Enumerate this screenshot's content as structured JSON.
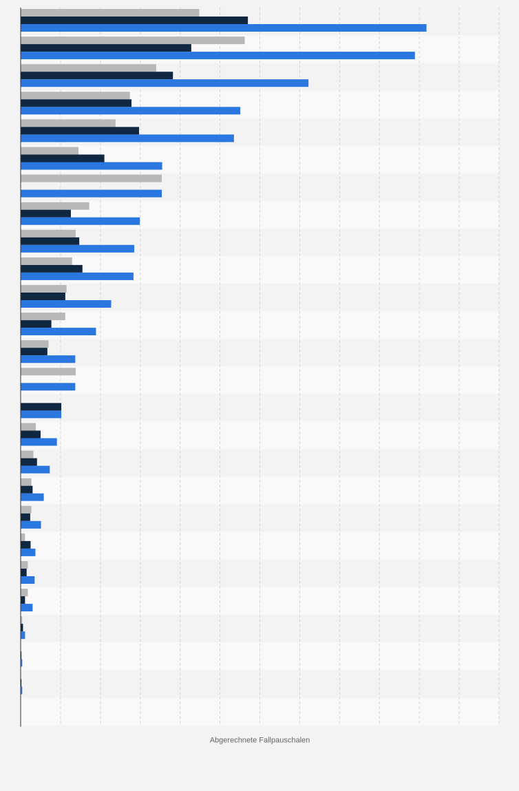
{
  "chart_data": {
    "type": "bar",
    "orientation": "horizontal",
    "title": "",
    "xlabel": "Abgerechnete Fallpauschalen",
    "ylabel": "",
    "grid": true,
    "legend": "none",
    "xlim": [
      0,
      12
    ],
    "categories": [
      "",
      "",
      "",
      "",
      "",
      "",
      "",
      "",
      "",
      "",
      "",
      "",
      "",
      "",
      "",
      "",
      "",
      "",
      "",
      "",
      "",
      "",
      "",
      "",
      "",
      ""
    ],
    "series": [
      {
        "color": "#b8b8b8",
        "values": [
          4.48,
          5.62,
          3.4,
          2.74,
          2.38,
          1.45,
          3.54,
          1.72,
          1.38,
          1.29,
          1.15,
          1.12,
          0.7,
          1.38,
          0,
          0.38,
          0.32,
          0.27,
          0.27,
          0.11,
          0.18,
          0.18,
          0.04,
          0.01,
          0.01,
          0
        ]
      },
      {
        "color": "#0f2741",
        "values": [
          5.7,
          4.28,
          3.82,
          2.78,
          2.97,
          2.1,
          0,
          1.26,
          1.47,
          1.55,
          1.12,
          0.77,
          0.67,
          0,
          1.02,
          0.5,
          0.41,
          0.3,
          0.24,
          0.25,
          0.15,
          0.11,
          0.06,
          0.02,
          0.02,
          0
        ]
      },
      {
        "color": "#2b77e0",
        "values": [
          10.18,
          9.89,
          7.22,
          5.51,
          5.35,
          3.55,
          3.54,
          2.99,
          2.85,
          2.83,
          2.27,
          1.89,
          1.37,
          1.37,
          1.02,
          0.91,
          0.73,
          0.58,
          0.51,
          0.37,
          0.35,
          0.3,
          0.11,
          0.04,
          0.04,
          0
        ]
      }
    ]
  }
}
